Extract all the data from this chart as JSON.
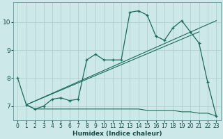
{
  "xlabel": "Humidex (Indice chaleur)",
  "bg_color": "#cce8e8",
  "grid_color": "#aacccc",
  "line_color": "#1a6b5a",
  "xlim": [
    -0.5,
    23.5
  ],
  "ylim": [
    6.5,
    10.7
  ],
  "yticks": [
    7,
    8,
    9,
    10
  ],
  "xticks": [
    0,
    1,
    2,
    3,
    4,
    5,
    6,
    7,
    8,
    9,
    10,
    11,
    12,
    13,
    14,
    15,
    16,
    17,
    18,
    19,
    20,
    21,
    22,
    23
  ],
  "main_x": [
    0,
    1,
    2,
    3,
    4,
    5,
    6,
    7,
    8,
    9,
    10,
    11,
    12,
    13,
    14,
    15,
    16,
    17,
    18,
    19,
    20,
    21,
    22,
    23
  ],
  "main_y": [
    8.0,
    7.05,
    6.9,
    7.0,
    7.25,
    7.3,
    7.2,
    7.25,
    8.65,
    8.85,
    8.65,
    8.65,
    8.65,
    10.35,
    10.4,
    10.25,
    9.5,
    9.35,
    9.8,
    10.05,
    9.65,
    9.25,
    7.85,
    6.65
  ],
  "line1_x": [
    1,
    23
  ],
  "line1_y": [
    7.05,
    10.05
  ],
  "line2_x": [
    1,
    21
  ],
  "line2_y": [
    7.05,
    9.65
  ],
  "flat_x": [
    1,
    2,
    3,
    4,
    5,
    6,
    7,
    8,
    9,
    10,
    11,
    12,
    13,
    14,
    15,
    16,
    17,
    18,
    19,
    20,
    21,
    22,
    23
  ],
  "flat_y": [
    7.05,
    6.9,
    6.9,
    6.9,
    6.9,
    6.9,
    6.9,
    6.9,
    6.9,
    6.9,
    6.9,
    6.9,
    6.9,
    6.9,
    6.85,
    6.85,
    6.85,
    6.85,
    6.8,
    6.8,
    6.75,
    6.75,
    6.65
  ]
}
